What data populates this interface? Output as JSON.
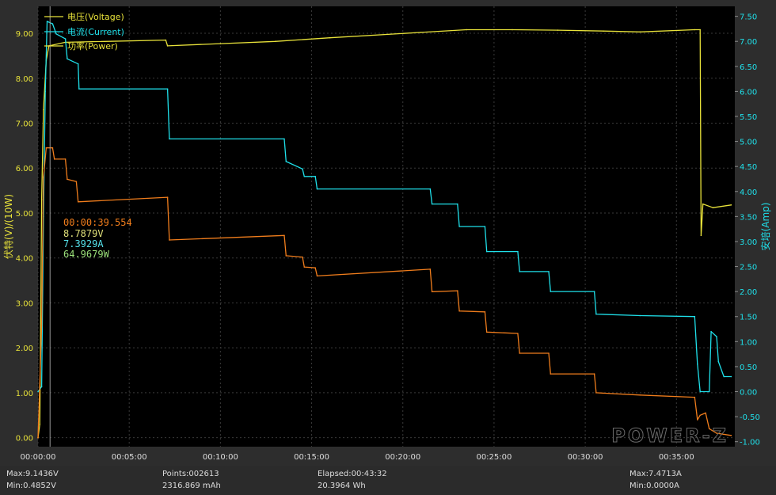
{
  "chart_data": {
    "type": "line",
    "title": "",
    "xlabel": "",
    "y_left_label": "伏特(V)/(10W)",
    "y_right_label": "安培(Amp)",
    "x_ticks": [
      "00:00:00",
      "00:05:00",
      "00:10:00",
      "00:15:00",
      "00:20:00",
      "00:25:00",
      "00:30:00",
      "00:35:00"
    ],
    "y_left_ticks": [
      "0.00",
      "1.00",
      "2.00",
      "3.00",
      "4.00",
      "5.00",
      "6.00",
      "7.00",
      "8.00",
      "9.00"
    ],
    "y_right_ticks": [
      "-1.00",
      "-0.50",
      "0.00",
      "0.50",
      "1.00",
      "1.50",
      "2.00",
      "2.50",
      "3.00",
      "3.50",
      "4.00",
      "4.50",
      "5.00",
      "5.50",
      "6.00",
      "6.50",
      "7.00",
      "7.50"
    ],
    "xlim_min": [
      0,
      38.2
    ],
    "y_left_lim": [
      -0.2,
      9.6
    ],
    "y_right_lim": [
      -1.1,
      7.7
    ],
    "grid": true,
    "legend_position": "top-left",
    "legend": [
      "电压(Voltage)",
      "电流(Current)",
      "功率(Power)"
    ],
    "colors": {
      "voltage": "#e8e23a",
      "current": "#1fe0ea",
      "power": "#f07d1c",
      "background": "#000000",
      "frame": "#2d2d2d",
      "cursor": "#aaaaaa"
    },
    "cursor": {
      "time_min": 0.66,
      "time_label": "00:00:39.554",
      "voltage_label": "8.7879V",
      "current_label": "7.3929A",
      "power_label": "64.9679W"
    },
    "series": [
      {
        "name": "电压(Voltage)",
        "axis": "left",
        "points": [
          [
            0,
            0
          ],
          [
            0.1,
            0.3
          ],
          [
            0.2,
            5.3
          ],
          [
            0.3,
            7.3
          ],
          [
            0.45,
            8.4
          ],
          [
            0.6,
            8.72
          ],
          [
            1.5,
            8.8
          ],
          [
            7,
            8.85
          ],
          [
            7.1,
            8.72
          ],
          [
            10,
            8.77
          ],
          [
            13,
            8.82
          ],
          [
            16,
            8.9
          ],
          [
            21,
            9.02
          ],
          [
            23.5,
            9.08
          ],
          [
            26,
            9.08
          ],
          [
            28.5,
            9.07
          ],
          [
            31,
            9.05
          ],
          [
            33,
            9.03
          ],
          [
            36,
            9.08
          ],
          [
            36.3,
            9.08
          ],
          [
            36.35,
            4.5
          ],
          [
            36.45,
            5.2
          ],
          [
            37,
            5.12
          ],
          [
            38,
            5.18
          ]
        ]
      },
      {
        "name": "电流(Current)",
        "axis": "right",
        "points": [
          [
            0,
            0
          ],
          [
            0.2,
            0.1
          ],
          [
            0.3,
            3.5
          ],
          [
            0.4,
            6.0
          ],
          [
            0.5,
            7.4
          ],
          [
            0.8,
            7.35
          ],
          [
            1,
            7.15
          ],
          [
            1.5,
            7.05
          ],
          [
            1.6,
            6.65
          ],
          [
            2.2,
            6.55
          ],
          [
            2.25,
            6.05
          ],
          [
            7.1,
            6.05
          ],
          [
            7.2,
            5.05
          ],
          [
            13.5,
            5.05
          ],
          [
            13.6,
            4.6
          ],
          [
            14.5,
            4.45
          ],
          [
            14.6,
            4.3
          ],
          [
            15.2,
            4.3
          ],
          [
            15.3,
            4.05
          ],
          [
            21.5,
            4.05
          ],
          [
            21.6,
            3.75
          ],
          [
            23,
            3.75
          ],
          [
            23.1,
            3.3
          ],
          [
            24.5,
            3.3
          ],
          [
            24.6,
            2.8
          ],
          [
            26.3,
            2.8
          ],
          [
            26.4,
            2.4
          ],
          [
            28,
            2.4
          ],
          [
            28.1,
            2.0
          ],
          [
            30.5,
            2.0
          ],
          [
            30.6,
            1.55
          ],
          [
            33,
            1.52
          ],
          [
            36,
            1.5
          ],
          [
            36.15,
            0.55
          ],
          [
            36.3,
            0.0
          ],
          [
            36.8,
            0.0
          ],
          [
            36.9,
            1.2
          ],
          [
            37.2,
            1.1
          ],
          [
            37.3,
            0.6
          ],
          [
            37.6,
            0.3
          ],
          [
            38,
            0.3
          ]
        ]
      },
      {
        "name": "功率(Power)",
        "axis": "left",
        "points": [
          [
            0,
            0
          ],
          [
            0.2,
            2.5
          ],
          [
            0.3,
            5.8
          ],
          [
            0.45,
            6.45
          ],
          [
            0.8,
            6.45
          ],
          [
            0.9,
            6.2
          ],
          [
            1.5,
            6.2
          ],
          [
            1.6,
            5.75
          ],
          [
            2.1,
            5.7
          ],
          [
            2.2,
            5.25
          ],
          [
            7.1,
            5.35
          ],
          [
            7.2,
            4.4
          ],
          [
            13.5,
            4.5
          ],
          [
            13.6,
            4.05
          ],
          [
            14.5,
            4.02
          ],
          [
            14.6,
            3.8
          ],
          [
            15.2,
            3.78
          ],
          [
            15.3,
            3.6
          ],
          [
            21.5,
            3.75
          ],
          [
            21.6,
            3.25
          ],
          [
            23,
            3.27
          ],
          [
            23.1,
            2.82
          ],
          [
            24.5,
            2.8
          ],
          [
            24.6,
            2.35
          ],
          [
            26.3,
            2.32
          ],
          [
            26.4,
            1.88
          ],
          [
            28,
            1.88
          ],
          [
            28.1,
            1.42
          ],
          [
            30.5,
            1.42
          ],
          [
            30.6,
            1.0
          ],
          [
            33,
            0.95
          ],
          [
            36,
            0.9
          ],
          [
            36.15,
            0.4
          ],
          [
            36.3,
            0.5
          ],
          [
            36.6,
            0.55
          ],
          [
            36.8,
            0.2
          ],
          [
            37.2,
            0.1
          ],
          [
            38,
            0.05
          ]
        ]
      }
    ]
  },
  "stats": {
    "max_voltage": "Max:9.1436V",
    "min_voltage": "Min:0.4852V",
    "points": "Points:002613",
    "capacity": "2316.869 mAh",
    "elapsed": "Elapsed:00:43:32",
    "energy": "20.3964 Wh",
    "max_current": "Max:7.4713A",
    "min_current": "Min:0.0000A"
  },
  "watermark": "POWER-Z"
}
